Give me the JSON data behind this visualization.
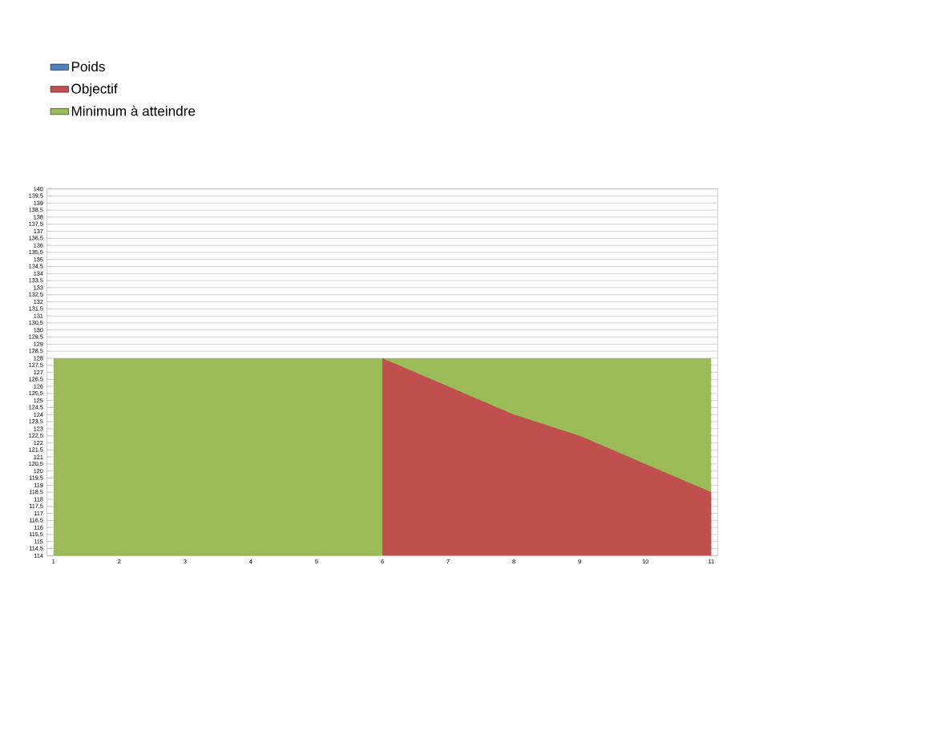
{
  "chart_data": {
    "type": "area",
    "categories": [
      "1",
      "2",
      "3",
      "4",
      "5",
      "6",
      "7",
      "8",
      "9",
      "10",
      "11"
    ],
    "series": [
      {
        "name": "Poids",
        "color": "#4f81bd",
        "values": [
          null,
          null,
          null,
          null,
          null,
          null,
          null,
          null,
          null,
          null,
          null
        ]
      },
      {
        "name": "Objectif",
        "color": "#c0504d",
        "values": [
          null,
          null,
          null,
          null,
          null,
          128,
          126,
          124,
          122.5,
          120.5,
          118.5
        ]
      },
      {
        "name": "Minimum à atteindre",
        "color": "#9bbb59",
        "values": [
          128,
          128,
          128,
          128,
          128,
          128,
          128,
          128,
          128,
          128,
          128
        ]
      }
    ],
    "ylim": [
      114,
      140
    ],
    "yticks": [
      114,
      {
        "value": 114.5,
        "label": "114,5"
      },
      115,
      {
        "value": 115.5,
        "label": "115,5"
      },
      116,
      {
        "value": 116.5,
        "label": "116,5"
      },
      117,
      {
        "value": 117.5,
        "label": "117,5"
      },
      118,
      {
        "value": 118.5,
        "label": "118,5"
      },
      119,
      {
        "value": 119.5,
        "label": "119,5"
      },
      120,
      {
        "value": 120.5,
        "label": "120,5"
      },
      121,
      {
        "value": 121.5,
        "label": "121,5"
      },
      122,
      {
        "value": 122.5,
        "label": "122,5"
      },
      123,
      {
        "value": 123.5,
        "label": "123,5"
      },
      124,
      {
        "value": 124.5,
        "label": "124,5"
      },
      125,
      {
        "value": 125.5,
        "label": "125,5"
      },
      126,
      {
        "value": 126.5,
        "label": "126,5"
      },
      127,
      {
        "value": 127.5,
        "label": "127,5"
      },
      128,
      {
        "value": 128.5,
        "label": "128,5"
      },
      129,
      {
        "value": 129.5,
        "label": "129,5"
      },
      130,
      {
        "value": 130.5,
        "label": "130,5"
      },
      131,
      {
        "value": 131.5,
        "label": "131,5"
      },
      132,
      {
        "value": 132.5,
        "label": "132,5"
      },
      133,
      {
        "value": 133.5,
        "label": "133,5"
      },
      134,
      {
        "value": 134.5,
        "label": "134,5"
      },
      135,
      {
        "value": 135.5,
        "label": "135,5"
      },
      136,
      {
        "value": 136.5,
        "label": "136,5"
      },
      137,
      {
        "value": 137.5,
        "label": "137,5"
      },
      138,
      {
        "value": 138.5,
        "label": "138,5"
      },
      139,
      {
        "value": 139.5,
        "label": "139,5"
      },
      140
    ],
    "grid": "y",
    "legend": "top left"
  }
}
